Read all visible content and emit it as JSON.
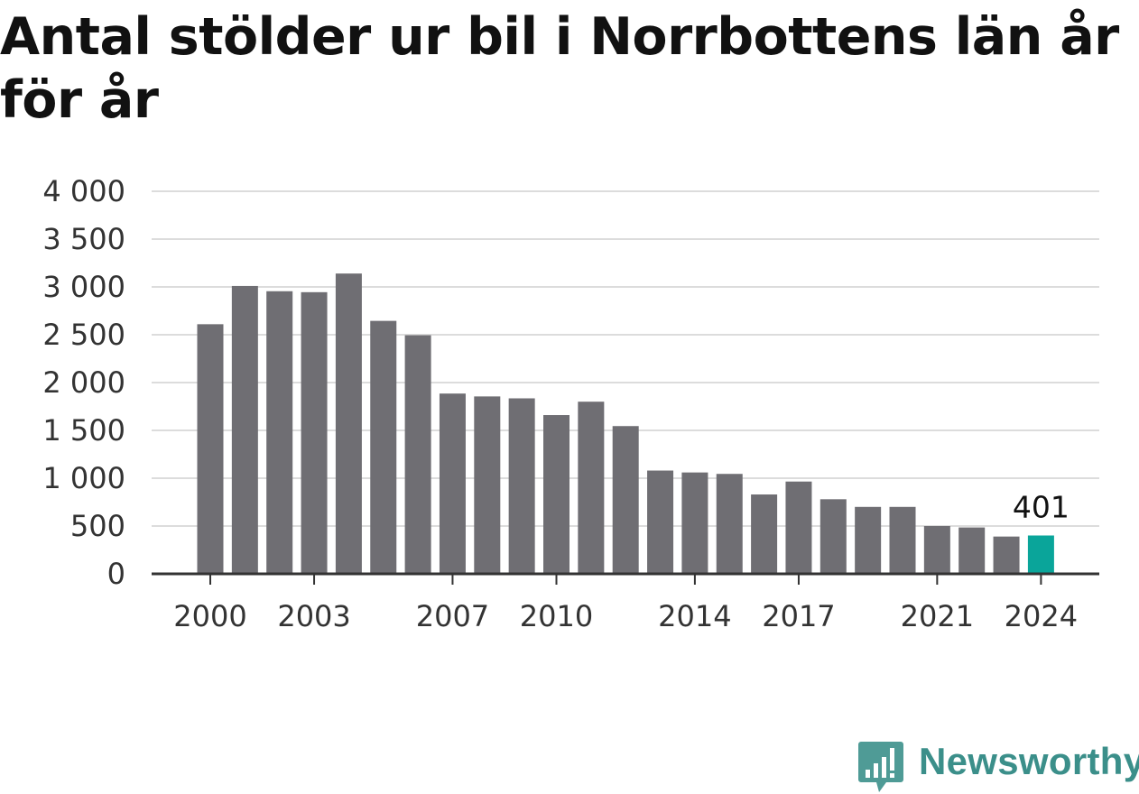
{
  "title": "Antal stölder ur bil i Norrbottens län år för år",
  "logo": {
    "text": "Newsworthy",
    "icon": "newsworthy-chart-bubble-icon",
    "color": "#3b8f8a"
  },
  "colors": {
    "bar": "#6f6e73",
    "highlight": "#0aa59a",
    "grid": "#dcdcdc",
    "axis": "#333333"
  },
  "chart_data": {
    "type": "bar",
    "title": "Antal stölder ur bil i Norrbottens län år för år",
    "xlabel": "",
    "ylabel": "",
    "ylim": [
      0,
      4000
    ],
    "yticks": [
      0,
      500,
      1000,
      1500,
      2000,
      2500,
      3000,
      3500,
      4000
    ],
    "ytick_labels": [
      "0",
      "500",
      "1 000",
      "1 500",
      "2 000",
      "2 500",
      "3 000",
      "3 500",
      "4 000"
    ],
    "categories": [
      "2000",
      "2001",
      "2002",
      "2003",
      "2004",
      "2005",
      "2006",
      "2007",
      "2008",
      "2009",
      "2010",
      "2011",
      "2012",
      "2013",
      "2014",
      "2015",
      "2016",
      "2017",
      "2018",
      "2019",
      "2020",
      "2021",
      "2022",
      "2023",
      "2024"
    ],
    "values": [
      2610,
      3010,
      2955,
      2945,
      3140,
      2645,
      2495,
      1885,
      1855,
      1835,
      1660,
      1800,
      1545,
      1080,
      1060,
      1045,
      830,
      965,
      780,
      700,
      700,
      500,
      485,
      390,
      401
    ],
    "xtick_labels": [
      "2000",
      "2003",
      "2007",
      "2010",
      "2014",
      "2017",
      "2021",
      "2024"
    ],
    "highlight_category": "2024",
    "data_labels": [
      {
        "category": "2024",
        "text": "401"
      }
    ],
    "grid": true,
    "legend": "none"
  }
}
